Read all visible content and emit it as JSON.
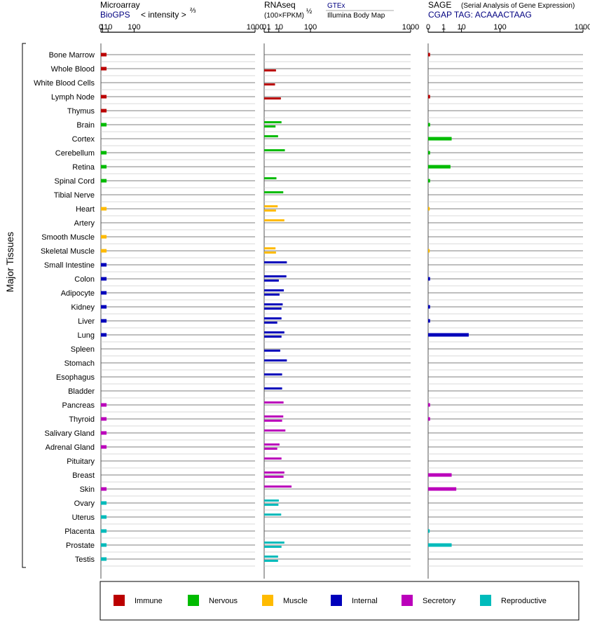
{
  "colors": {
    "Immune": "#bb0000",
    "Nervous": "#00bb00",
    "Muscle": "#ffbb00",
    "Internal": "#0000bb",
    "Secretory": "#bb00bb",
    "Reproductive": "#00bbbb"
  },
  "panels": [
    {
      "title": "Microarray",
      "source": "BioGPS",
      "label": "< intensity >",
      "exponent": "⅔",
      "ticks": [
        "0",
        "1",
        "10",
        "100",
        "1000"
      ]
    },
    {
      "title": "RNAseq",
      "unit": "(100×FPKM)",
      "exponent": "½",
      "source1": "GTEx",
      "source2": "Illumina Body Map",
      "ticks": [
        "0",
        "1",
        "10",
        "100",
        "1000"
      ]
    },
    {
      "title": "SAGE",
      "subtitle": "(Serial Analysis of Gene Expression)",
      "tag": "CGAP TAG: ACAAACTAAG",
      "ticks": [
        "0",
        "1",
        "10",
        "100",
        "1000"
      ]
    }
  ],
  "side_label": "Major Tissues",
  "legend": [
    "Immune",
    "Nervous",
    "Muscle",
    "Internal",
    "Secretory",
    "Reproductive"
  ],
  "chart_data": {
    "type": "bar",
    "orientation": "horizontal",
    "scale": "power",
    "xlim": [
      0,
      1000
    ],
    "tissues": [
      {
        "name": "Bone Marrow",
        "group": "Immune",
        "microarray": 7,
        "rnaseq": [],
        "sage": 0.002
      },
      {
        "name": "Whole Blood",
        "group": "Immune",
        "microarray": 7,
        "rnaseq": [
          null,
          6.5
        ],
        "sage": 0
      },
      {
        "name": "White Blood Cells",
        "group": "Immune",
        "microarray": null,
        "rnaseq": [
          null,
          5.5
        ],
        "sage": 0
      },
      {
        "name": "Lymph Node",
        "group": "Immune",
        "microarray": 7,
        "rnaseq": [
          null,
          13
        ],
        "sage": 0.002
      },
      {
        "name": "Thymus",
        "group": "Immune",
        "microarray": 7,
        "rnaseq": [],
        "sage": 0
      },
      {
        "name": "Brain",
        "group": "Nervous",
        "microarray": 7,
        "rnaseq": [
          14,
          6
        ],
        "sage": 0.002
      },
      {
        "name": "Cortex",
        "group": "Nervous",
        "microarray": null,
        "rnaseq": [
          9,
          null
        ],
        "sage": 3.5
      },
      {
        "name": "Cerebellum",
        "group": "Nervous",
        "microarray": 7,
        "rnaseq": [
          20,
          null
        ],
        "sage": 0.002
      },
      {
        "name": "Retina",
        "group": "Nervous",
        "microarray": 7,
        "rnaseq": [],
        "sage": 3.0
      },
      {
        "name": "Spinal Cord",
        "group": "Nervous",
        "microarray": 7,
        "rnaseq": [
          7,
          null
        ],
        "sage": 0.002
      },
      {
        "name": "Tibial Nerve",
        "group": "Nervous",
        "microarray": null,
        "rnaseq": [
          17,
          null
        ],
        "sage": 0
      },
      {
        "name": "Heart",
        "group": "Muscle",
        "microarray": 7,
        "rnaseq": [
          8.5,
          6.5
        ],
        "sage": 0.001
      },
      {
        "name": "Artery",
        "group": "Muscle",
        "microarray": null,
        "rnaseq": [
          19,
          null
        ],
        "sage": 0
      },
      {
        "name": "Smooth Muscle",
        "group": "Muscle",
        "microarray": 7,
        "rnaseq": [],
        "sage": 0
      },
      {
        "name": "Skeletal Muscle",
        "group": "Muscle",
        "microarray": 7,
        "rnaseq": [
          6,
          6.5
        ],
        "sage": 0.001
      },
      {
        "name": "Small Intestine",
        "group": "Internal",
        "microarray": 7,
        "rnaseq": [
          24,
          null
        ],
        "sage": 0
      },
      {
        "name": "Colon",
        "group": "Internal",
        "microarray": 7,
        "rnaseq": [
          23,
          10
        ],
        "sage": 0.002
      },
      {
        "name": "Adipocyte",
        "group": "Internal",
        "microarray": 7,
        "rnaseq": [
          18,
          11
        ],
        "sage": 0
      },
      {
        "name": "Kidney",
        "group": "Internal",
        "microarray": 7,
        "rnaseq": [
          16,
          14
        ],
        "sage": 0.002
      },
      {
        "name": "Liver",
        "group": "Internal",
        "microarray": 7,
        "rnaseq": [
          14,
          8
        ],
        "sage": 0.002
      },
      {
        "name": "Lung",
        "group": "Internal",
        "microarray": 7,
        "rnaseq": [
          19,
          14
        ],
        "sage": 18
      },
      {
        "name": "Spleen",
        "group": "Internal",
        "microarray": null,
        "rnaseq": [
          null,
          12
        ],
        "sage": 0
      },
      {
        "name": "Stomach",
        "group": "Internal",
        "microarray": null,
        "rnaseq": [
          24,
          null
        ],
        "sage": 0
      },
      {
        "name": "Esophagus",
        "group": "Internal",
        "microarray": null,
        "rnaseq": [
          15,
          null
        ],
        "sage": 0
      },
      {
        "name": "Bladder",
        "group": "Internal",
        "microarray": null,
        "rnaseq": [
          15,
          null
        ],
        "sage": 0
      },
      {
        "name": "Pancreas",
        "group": "Secretory",
        "microarray": 7,
        "rnaseq": [
          17.5,
          null
        ],
        "sage": 0.002
      },
      {
        "name": "Thyroid",
        "group": "Secretory",
        "microarray": 7,
        "rnaseq": [
          17,
          15
        ],
        "sage": 0.002
      },
      {
        "name": "Salivary Gland",
        "group": "Secretory",
        "microarray": 7,
        "rnaseq": [
          21,
          null
        ],
        "sage": 0
      },
      {
        "name": "Adrenal Gland",
        "group": "Secretory",
        "microarray": 7,
        "rnaseq": [
          11,
          8
        ],
        "sage": 0
      },
      {
        "name": "Pituitary",
        "group": "Secretory",
        "microarray": null,
        "rnaseq": [
          14,
          null
        ],
        "sage": 0
      },
      {
        "name": "Breast",
        "group": "Secretory",
        "microarray": null,
        "rnaseq": [
          19,
          17.5
        ],
        "sage": 3.5
      },
      {
        "name": "Skin",
        "group": "Secretory",
        "microarray": 7,
        "rnaseq": [
          35,
          null
        ],
        "sage": 6
      },
      {
        "name": "Ovary",
        "group": "Reproductive",
        "microarray": 7,
        "rnaseq": [
          10,
          9.5
        ],
        "sage": 0
      },
      {
        "name": "Uterus",
        "group": "Reproductive",
        "microarray": 7,
        "rnaseq": [
          13.5,
          null
        ],
        "sage": 0
      },
      {
        "name": "Placenta",
        "group": "Reproductive",
        "microarray": 7,
        "rnaseq": [],
        "sage": 0.001
      },
      {
        "name": "Prostate",
        "group": "Reproductive",
        "microarray": 7,
        "rnaseq": [
          19,
          14
        ],
        "sage": 3.5
      },
      {
        "name": "Testis",
        "group": "Reproductive",
        "microarray": 7,
        "rnaseq": [
          9,
          9
        ],
        "sage": 0
      }
    ]
  }
}
